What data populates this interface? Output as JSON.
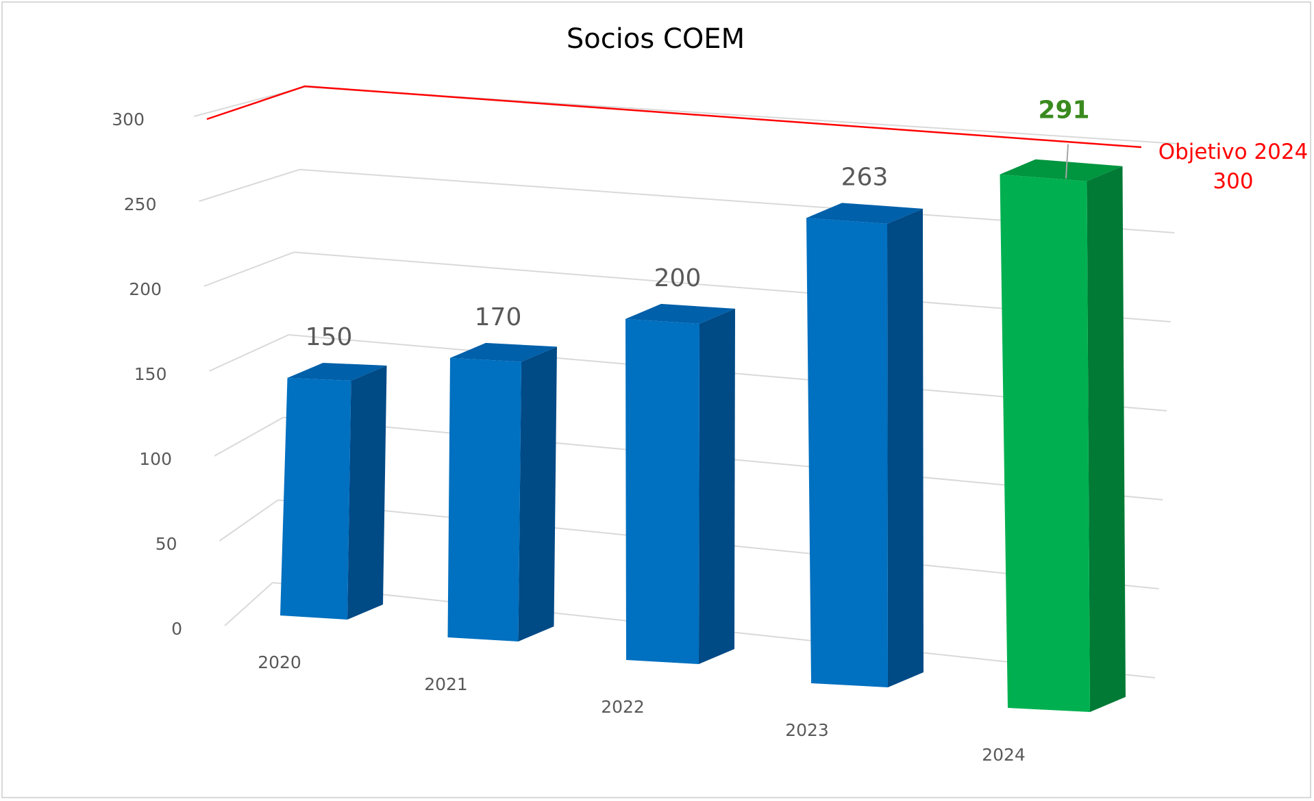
{
  "chart_data": {
    "type": "bar",
    "title": "Socios  COEM",
    "categories": [
      "2020",
      "2021",
      "2022",
      "2023",
      "2024"
    ],
    "values": [
      150,
      170,
      200,
      263,
      291
    ],
    "data_labels": [
      "150",
      "170",
      "200",
      "263",
      "291"
    ],
    "yticks": [
      "0",
      "50",
      "100",
      "150",
      "200",
      "250",
      "300"
    ],
    "ylim": [
      0,
      300
    ],
    "grid": true,
    "three_d": true,
    "highlight_index": 4,
    "target": {
      "value": 300,
      "label_line1": "Objetivo 2024",
      "label_line2": "300"
    },
    "colors": {
      "bar_front": "#0070c0",
      "bar_top": "#0060aa",
      "bar_side": "#004a86",
      "highlight_front": "#00b050",
      "highlight_top": "#00953f",
      "highlight_side": "#007a35",
      "highlight_label": "#3a8a1f",
      "target_line": "#ff0000",
      "gridline": "#d9d9d9",
      "text": "#595959"
    }
  }
}
